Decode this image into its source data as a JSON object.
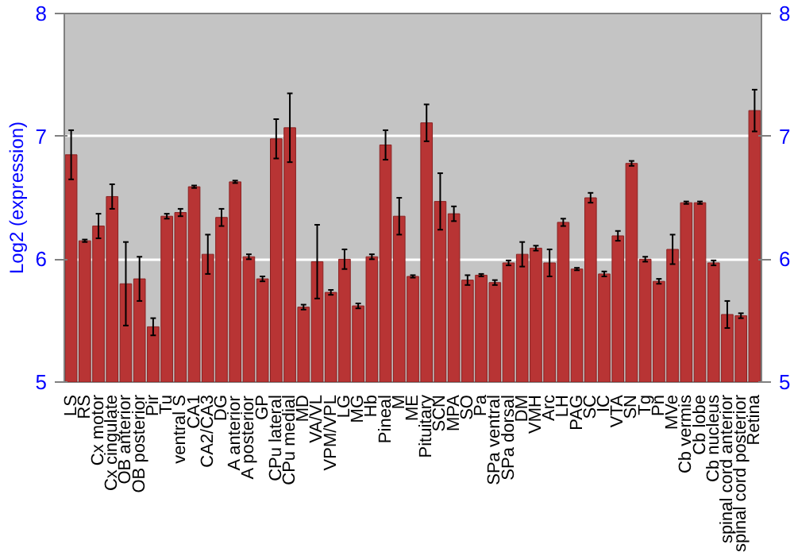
{
  "chart_data": {
    "type": "bar",
    "ylabel": "Log2 (expression)",
    "categories": [
      "LS",
      "RS",
      "Cx motor",
      "Cx cingulate",
      "OB anterior",
      "OB posterior",
      "Pir",
      "Tu",
      "ventral S",
      "CA1",
      "CA2/CA3",
      "DG",
      "A anterior",
      "A posterior",
      "GP",
      "CPu lateral",
      "CPu medial",
      "MD",
      "VA/VL",
      "VPM/VPL",
      "LG",
      "MG",
      "Hb",
      "Pineal",
      "M",
      "ME",
      "Pituitary",
      "SCN",
      "MPA",
      "SO",
      "Pa",
      "SPa ventral",
      "SPa dorsal",
      "DM",
      "VMH",
      "Arc",
      "LH",
      "PAG",
      "SC",
      "IC",
      "VTA",
      "SN",
      "Tg",
      "Pn",
      "MVe",
      "Cb vermis",
      "Cb lobe",
      "Cb nucleus",
      "spinal cord anterior",
      "spinal cord posterior",
      "Retina"
    ],
    "values": [
      6.85,
      6.15,
      6.27,
      6.51,
      5.8,
      5.84,
      5.45,
      6.35,
      6.38,
      6.59,
      6.04,
      6.34,
      6.63,
      6.02,
      5.84,
      6.98,
      7.07,
      5.61,
      5.98,
      5.73,
      6.0,
      5.62,
      6.02,
      6.93,
      6.35,
      5.86,
      7.11,
      6.47,
      6.37,
      5.83,
      5.87,
      5.81,
      5.97,
      6.04,
      6.09,
      5.97,
      6.3,
      5.92,
      6.5,
      5.88,
      6.19,
      6.78,
      6.0,
      5.82,
      6.08,
      6.46,
      6.46,
      5.97,
      5.55,
      5.54,
      7.21
    ],
    "errors": [
      0.2,
      0.01,
      0.1,
      0.1,
      0.34,
      0.18,
      0.07,
      0.02,
      0.03,
      0.01,
      0.16,
      0.07,
      0.01,
      0.02,
      0.02,
      0.16,
      0.28,
      0.02,
      0.3,
      0.02,
      0.08,
      0.02,
      0.02,
      0.12,
      0.15,
      0.01,
      0.15,
      0.23,
      0.06,
      0.04,
      0.01,
      0.02,
      0.02,
      0.1,
      0.02,
      0.11,
      0.03,
      0.01,
      0.04,
      0.02,
      0.04,
      0.02,
      0.02,
      0.02,
      0.12,
      0.01,
      0.01,
      0.02,
      0.11,
      0.02,
      0.17
    ],
    "color": "#b83434",
    "ylim": [
      5,
      8
    ],
    "yticks": [
      5,
      6,
      7,
      8
    ],
    "y2lim": [
      5,
      8
    ],
    "y2ticks": [
      5,
      6,
      7,
      8
    ],
    "grid": "y"
  }
}
